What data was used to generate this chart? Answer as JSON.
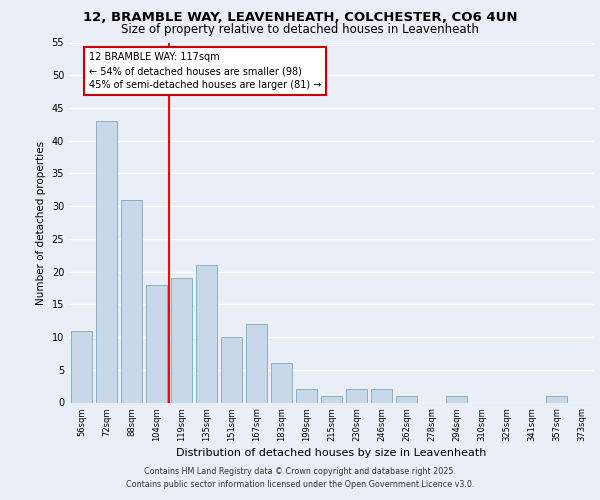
{
  "title1": "12, BRAMBLE WAY, LEAVENHEATH, COLCHESTER, CO6 4UN",
  "title2": "Size of property relative to detached houses in Leavenheath",
  "xlabel": "Distribution of detached houses by size in Leavenheath",
  "ylabel": "Number of detached properties",
  "categories": [
    "56sqm",
    "72sqm",
    "88sqm",
    "104sqm",
    "119sqm",
    "135sqm",
    "151sqm",
    "167sqm",
    "183sqm",
    "199sqm",
    "215sqm",
    "230sqm",
    "246sqm",
    "262sqm",
    "278sqm",
    "294sqm",
    "310sqm",
    "325sqm",
    "341sqm",
    "357sqm",
    "373sqm"
  ],
  "values": [
    11,
    43,
    31,
    18,
    19,
    21,
    10,
    12,
    6,
    2,
    1,
    2,
    2,
    1,
    0,
    1,
    0,
    0,
    0,
    1,
    0
  ],
  "bar_color": "#c8d8e8",
  "bar_edge_color": "#7aaabb",
  "vline_index": 3.5,
  "annotation_line1": "12 BRAMBLE WAY: 117sqm",
  "annotation_line2": "← 54% of detached houses are smaller (98)",
  "annotation_line3": "45% of semi-detached houses are larger (81) →",
  "box_edge_color": "#cc0000",
  "ylim": [
    0,
    55
  ],
  "yticks": [
    0,
    5,
    10,
    15,
    20,
    25,
    30,
    35,
    40,
    45,
    50,
    55
  ],
  "background_color": "#eaeff7",
  "grid_color": "#ffffff",
  "fig_bg_color": "#eaeff7",
  "footer1": "Contains HM Land Registry data © Crown copyright and database right 2025.",
  "footer2": "Contains public sector information licensed under the Open Government Licence v3.0."
}
